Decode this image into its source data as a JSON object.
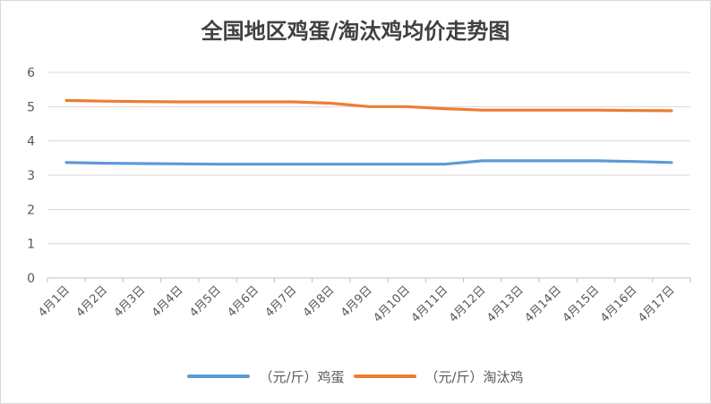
{
  "chart_data": {
    "type": "line",
    "title": "全国地区鸡蛋/淘汰鸡均价走势图",
    "categories": [
      "4月1日",
      "4月2日",
      "4月3日",
      "4月4日",
      "4月5日",
      "4月6日",
      "4月7日",
      "4月8日",
      "4月9日",
      "4月10日",
      "4月11日",
      "4月12日",
      "4月13日",
      "4月14日",
      "4月15日",
      "4月16日",
      "4月17日"
    ],
    "ylim": [
      0,
      6
    ],
    "yticks": [
      0,
      1,
      2,
      3,
      4,
      5,
      6
    ],
    "grid": true,
    "legend_position": "bottom",
    "series": [
      {
        "name": "（元/斤）鸡蛋",
        "color": "#5b9bd5",
        "values": [
          3.37,
          3.35,
          3.34,
          3.33,
          3.32,
          3.32,
          3.32,
          3.32,
          3.32,
          3.32,
          3.32,
          3.42,
          3.42,
          3.42,
          3.42,
          3.4,
          3.37
        ]
      },
      {
        "name": "（元/斤）淘汰鸡",
        "color": "#ed7d31",
        "values": [
          5.18,
          5.16,
          5.15,
          5.14,
          5.14,
          5.14,
          5.14,
          5.1,
          5.0,
          5.0,
          4.94,
          4.9,
          4.9,
          4.9,
          4.9,
          4.89,
          4.88
        ]
      }
    ]
  }
}
